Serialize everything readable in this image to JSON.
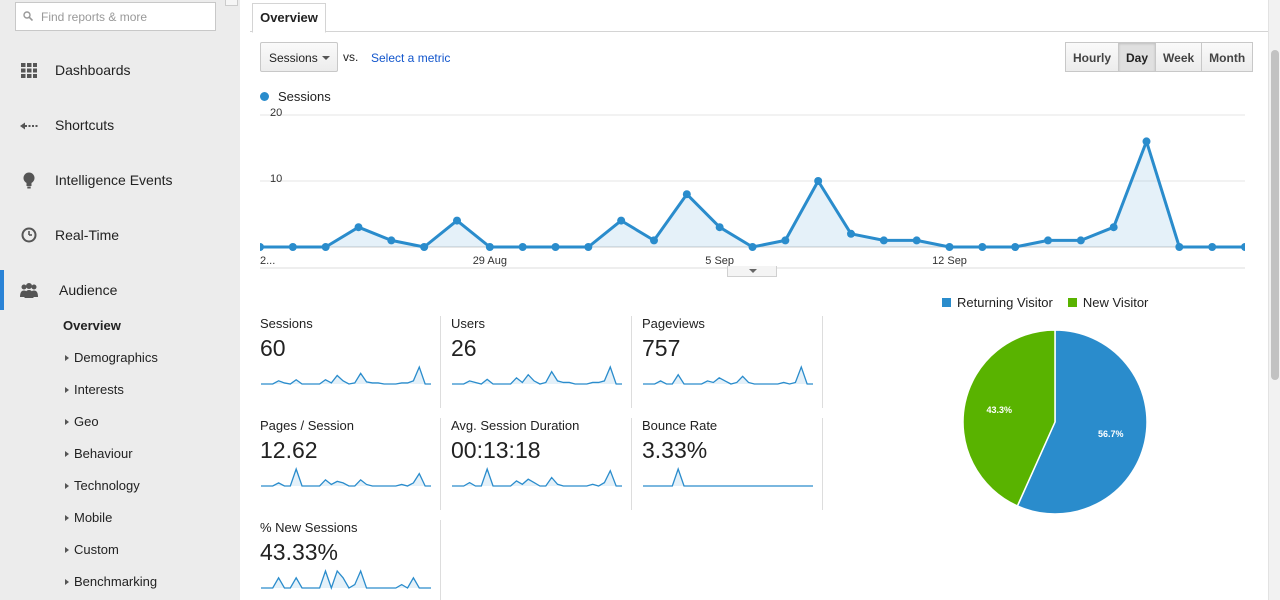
{
  "search": {
    "placeholder": "Find reports & more"
  },
  "sidebar": {
    "items": [
      {
        "label": "Dashboards",
        "icon": "dashboard-grid-icon"
      },
      {
        "label": "Shortcuts",
        "icon": "shortcut-arrow-icon"
      },
      {
        "label": "Intelligence Events",
        "icon": "lightbulb-icon"
      },
      {
        "label": "Real-Time",
        "icon": "clock-icon"
      },
      {
        "label": "Audience",
        "icon": "people-icon"
      }
    ],
    "audience_sub": [
      "Overview",
      "Demographics",
      "Interests",
      "Geo",
      "Behaviour",
      "Technology",
      "Mobile",
      "Custom",
      "Benchmarking"
    ]
  },
  "tabs": {
    "overview": "Overview"
  },
  "toolbar": {
    "metric": "Sessions",
    "vs": "vs.",
    "select_metric": "Select a metric",
    "granularity": [
      "Hourly",
      "Day",
      "Week",
      "Month"
    ],
    "granularity_selected": "Day"
  },
  "chart_data": [
    {
      "type": "line",
      "series": [
        {
          "name": "Sessions",
          "values": [
            0,
            0,
            0,
            3,
            1,
            0,
            4,
            0,
            0,
            0,
            0,
            4,
            1,
            8,
            3,
            0,
            1,
            10,
            2,
            1,
            1,
            0,
            0,
            0,
            1,
            1,
            3,
            16,
            0,
            0,
            0
          ]
        }
      ],
      "x_tick_labels": [
        "2...",
        "29 Aug",
        "5 Sep",
        "12 Sep"
      ],
      "y_ticks": [
        10,
        20
      ],
      "ylim": [
        0,
        20
      ],
      "color": "#2a8ccc",
      "grid": true
    },
    {
      "type": "pie",
      "categories": [
        "Returning Visitor",
        "New Visitor"
      ],
      "values": [
        56.7,
        43.3
      ],
      "labels": [
        "56.7%",
        "43.3%"
      ],
      "colors": [
        "#2a8ccc",
        "#59b300"
      ],
      "legend": "top"
    }
  ],
  "kpis": [
    {
      "title": "Sessions",
      "value": "60",
      "spark": [
        0,
        0,
        0,
        3,
        1,
        0,
        4,
        0,
        0,
        0,
        0,
        4,
        1,
        8,
        3,
        0,
        1,
        10,
        2,
        1,
        1,
        0,
        0,
        0,
        1,
        1,
        3,
        16,
        0,
        0
      ]
    },
    {
      "title": "Users",
      "value": "26",
      "spark": [
        0,
        0,
        0,
        2,
        1,
        0,
        3,
        0,
        0,
        0,
        0,
        4,
        1,
        6,
        2,
        0,
        1,
        8,
        2,
        1,
        1,
        0,
        0,
        0,
        1,
        1,
        2,
        11,
        0,
        0
      ]
    },
    {
      "title": "Pageviews",
      "value": "757",
      "spark": [
        0,
        0,
        0,
        2,
        0,
        0,
        6,
        0,
        0,
        0,
        0,
        2,
        1,
        4,
        2,
        0,
        1,
        5,
        1,
        0,
        0,
        0,
        0,
        0,
        1,
        0,
        1,
        11,
        0,
        0
      ]
    },
    {
      "title": "Pages / Session",
      "value": "12.62",
      "spark": [
        0,
        0,
        0,
        2,
        0,
        0,
        11,
        0,
        0,
        0,
        0,
        4,
        1,
        3,
        2,
        0,
        0,
        4,
        1,
        0,
        0,
        0,
        0,
        0,
        1,
        0,
        2,
        8,
        0,
        0
      ]
    },
    {
      "title": "Avg. Session Duration",
      "value": "00:13:18",
      "spark": [
        0,
        0,
        0,
        2,
        0,
        0,
        10,
        0,
        0,
        0,
        0,
        3,
        1,
        4,
        2,
        0,
        0,
        5,
        1,
        0,
        0,
        0,
        0,
        0,
        1,
        0,
        2,
        9,
        0,
        0
      ]
    },
    {
      "title": "Bounce Rate",
      "value": "3.33%",
      "spark": [
        0,
        0,
        0,
        0,
        0,
        0,
        12,
        0,
        0,
        0,
        0,
        0,
        0,
        0,
        0,
        0,
        0,
        0,
        0,
        0,
        0,
        0,
        0,
        0,
        0,
        0,
        0,
        0,
        0,
        0
      ]
    },
    {
      "title": "% New Sessions",
      "value": "43.33%",
      "spark": [
        0,
        0,
        0,
        3,
        0,
        0,
        3,
        0,
        0,
        0,
        0,
        5,
        0,
        5,
        3,
        0,
        1,
        5,
        0,
        0,
        0,
        0,
        0,
        0,
        1,
        0,
        3,
        0,
        0,
        0
      ]
    }
  ]
}
